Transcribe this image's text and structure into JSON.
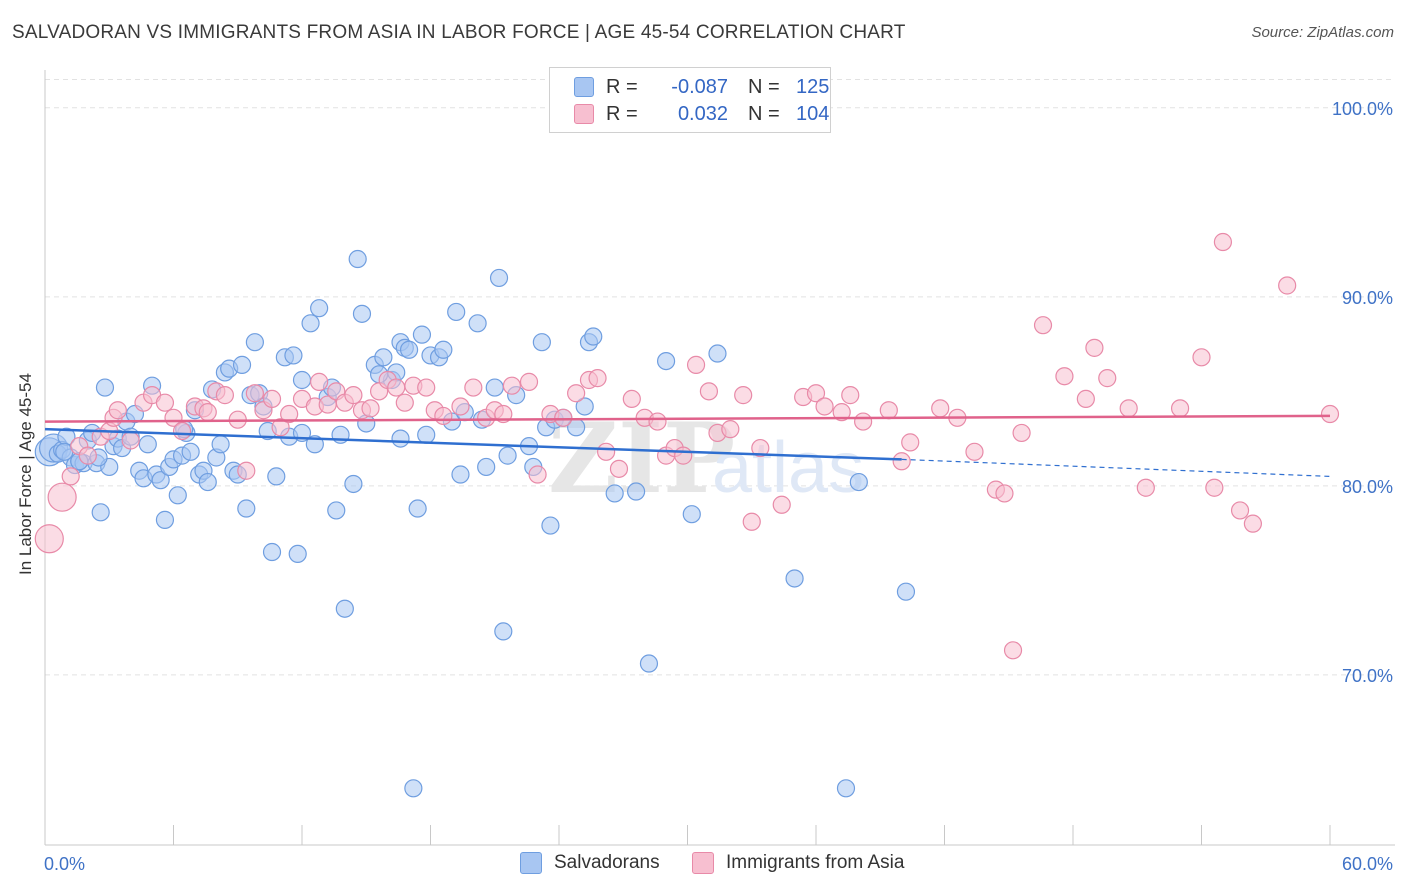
{
  "header": {
    "title": "SALVADORAN VS IMMIGRANTS FROM ASIA IN LABOR FORCE | AGE 45-54 CORRELATION CHART",
    "source": "Source: ZipAtlas.com"
  },
  "legend": {
    "rows": [
      {
        "r_label": "R =",
        "r_value": "-0.087",
        "n_label": "N =",
        "n_value": "125",
        "color": "#a8c6f2",
        "border": "#6f9ee0"
      },
      {
        "r_label": "R =",
        "r_value": "0.032",
        "n_label": "N =",
        "n_value": "104",
        "color": "#f7bfd0",
        "border": "#e88aa8"
      }
    ]
  },
  "bottom_legend": [
    "Salvadorans",
    "Immigrants from Asia"
  ],
  "watermark": {
    "zip": "ZIP",
    "atlas": "atlas"
  },
  "chart_data": {
    "type": "scatter",
    "title": "SALVADORAN VS IMMIGRANTS FROM ASIA IN LABOR FORCE | AGE 45-54 CORRELATION CHART",
    "xlabel": "",
    "ylabel": "In Labor Force | Age 45-54",
    "xlim": [
      0,
      60
    ],
    "ylim": [
      61,
      102
    ],
    "x_tick_labels": [
      "0.0%",
      "60.0%"
    ],
    "y_ticks": [
      70,
      80,
      90,
      100
    ],
    "y_tick_labels": [
      "70.0%",
      "80.0%",
      "90.0%",
      "100.0%"
    ],
    "grid": true,
    "legend_position": "top-center",
    "series": [
      {
        "name": "Salvadorans",
        "color": "#6f9ee0",
        "fill": "#a8c6f2",
        "trend": {
          "x": [
            0,
            40,
            60
          ],
          "y": [
            83.0,
            81.4,
            80.5
          ],
          "solid_until": 40
        },
        "points": [
          [
            0.2,
            81.8
          ],
          [
            0.4,
            82.0
          ],
          [
            0.6,
            81.7
          ],
          [
            0.8,
            81.9
          ],
          [
            1.0,
            82.6
          ],
          [
            1.2,
            81.5
          ],
          [
            1.4,
            81.1
          ],
          [
            1.6,
            81.3
          ],
          [
            1.8,
            81.2
          ],
          [
            2.0,
            82.4
          ],
          [
            2.2,
            82.8
          ],
          [
            2.4,
            81.2
          ],
          [
            2.6,
            78.6
          ],
          [
            2.8,
            85.2
          ],
          [
            3.0,
            81.0
          ],
          [
            3.2,
            82.1
          ],
          [
            3.4,
            82.5
          ],
          [
            3.6,
            82.0
          ],
          [
            3.8,
            83.4
          ],
          [
            4.0,
            82.6
          ],
          [
            4.2,
            83.8
          ],
          [
            4.4,
            80.8
          ],
          [
            4.6,
            80.4
          ],
          [
            4.8,
            82.2
          ],
          [
            5.0,
            85.3
          ],
          [
            5.2,
            80.6
          ],
          [
            5.4,
            80.3
          ],
          [
            5.6,
            78.2
          ],
          [
            5.8,
            81.0
          ],
          [
            6.0,
            81.4
          ],
          [
            6.2,
            79.5
          ],
          [
            6.4,
            81.6
          ],
          [
            6.6,
            82.8
          ],
          [
            6.8,
            81.8
          ],
          [
            7.0,
            84.0
          ],
          [
            7.2,
            80.6
          ],
          [
            7.4,
            80.8
          ],
          [
            7.6,
            80.2
          ],
          [
            7.8,
            85.1
          ],
          [
            8.0,
            81.5
          ],
          [
            8.2,
            82.2
          ],
          [
            8.4,
            86.0
          ],
          [
            8.6,
            86.2
          ],
          [
            8.8,
            80.8
          ],
          [
            9.0,
            80.6
          ],
          [
            9.2,
            86.4
          ],
          [
            9.4,
            78.8
          ],
          [
            9.6,
            84.8
          ],
          [
            9.8,
            87.6
          ],
          [
            10.0,
            84.9
          ],
          [
            10.2,
            84.2
          ],
          [
            10.4,
            82.9
          ],
          [
            10.6,
            76.5
          ],
          [
            10.8,
            80.5
          ],
          [
            11.2,
            86.8
          ],
          [
            11.4,
            82.6
          ],
          [
            11.6,
            86.9
          ],
          [
            11.8,
            76.4
          ],
          [
            12.0,
            85.6
          ],
          [
            12.4,
            88.6
          ],
          [
            12.6,
            82.2
          ],
          [
            12.8,
            89.4
          ],
          [
            13.2,
            84.7
          ],
          [
            13.4,
            85.2
          ],
          [
            13.6,
            78.7
          ],
          [
            13.8,
            82.7
          ],
          [
            14.0,
            73.5
          ],
          [
            14.4,
            80.1
          ],
          [
            14.6,
            92.0
          ],
          [
            14.8,
            89.1
          ],
          [
            15.0,
            83.3
          ],
          [
            15.4,
            86.4
          ],
          [
            15.8,
            86.8
          ],
          [
            16.2,
            85.6
          ],
          [
            16.4,
            86.0
          ],
          [
            16.6,
            87.6
          ],
          [
            16.8,
            87.3
          ],
          [
            17.0,
            87.2
          ],
          [
            17.2,
            64.0
          ],
          [
            17.4,
            78.8
          ],
          [
            17.6,
            88.0
          ],
          [
            17.8,
            82.7
          ],
          [
            18.0,
            86.9
          ],
          [
            18.4,
            86.8
          ],
          [
            18.6,
            87.2
          ],
          [
            19.0,
            83.4
          ],
          [
            19.2,
            89.2
          ],
          [
            19.4,
            80.6
          ],
          [
            19.6,
            83.9
          ],
          [
            20.2,
            88.6
          ],
          [
            20.6,
            81.0
          ],
          [
            21.0,
            85.2
          ],
          [
            21.2,
            91.0
          ],
          [
            21.4,
            72.3
          ],
          [
            21.6,
            81.6
          ],
          [
            22.6,
            82.1
          ],
          [
            22.8,
            81.0
          ],
          [
            23.2,
            87.6
          ],
          [
            23.4,
            83.1
          ],
          [
            23.6,
            77.9
          ],
          [
            23.8,
            83.5
          ],
          [
            24.2,
            83.6
          ],
          [
            24.8,
            83.1
          ],
          [
            25.2,
            84.2
          ],
          [
            25.4,
            87.6
          ],
          [
            25.6,
            87.9
          ],
          [
            26.6,
            79.6
          ],
          [
            27.6,
            79.7
          ],
          [
            28.2,
            70.6
          ],
          [
            29.0,
            86.6
          ],
          [
            30.2,
            78.5
          ],
          [
            31.4,
            87.0
          ],
          [
            35.0,
            75.1
          ],
          [
            37.4,
            64.0
          ],
          [
            38.0,
            80.2
          ],
          [
            40.2,
            74.4
          ],
          [
            1.6,
            81.3
          ],
          [
            0.9,
            81.8
          ],
          [
            2.5,
            81.5
          ],
          [
            6.5,
            83.0
          ],
          [
            12.0,
            82.8
          ],
          [
            15.6,
            85.9
          ],
          [
            20.4,
            83.5
          ],
          [
            22.0,
            84.8
          ],
          [
            16.6,
            82.5
          ]
        ]
      },
      {
        "name": "Immigrants from Asia",
        "color": "#e88aa8",
        "fill": "#f7bfd0",
        "trend": {
          "x": [
            0,
            60
          ],
          "y": [
            83.4,
            83.7
          ],
          "solid_until": 60
        },
        "points": [
          [
            0.2,
            77.2
          ],
          [
            0.8,
            79.4
          ],
          [
            1.2,
            80.5
          ],
          [
            1.6,
            82.1
          ],
          [
            2.0,
            81.6
          ],
          [
            2.6,
            82.6
          ],
          [
            3.0,
            82.9
          ],
          [
            3.2,
            83.6
          ],
          [
            3.4,
            84.0
          ],
          [
            4.0,
            82.4
          ],
          [
            4.6,
            84.4
          ],
          [
            5.0,
            84.8
          ],
          [
            5.6,
            84.4
          ],
          [
            6.0,
            83.6
          ],
          [
            6.4,
            82.9
          ],
          [
            7.0,
            84.2
          ],
          [
            7.4,
            84.1
          ],
          [
            7.6,
            83.9
          ],
          [
            8.0,
            85.0
          ],
          [
            8.4,
            84.8
          ],
          [
            9.0,
            83.5
          ],
          [
            9.4,
            80.8
          ],
          [
            9.8,
            84.9
          ],
          [
            10.2,
            84.0
          ],
          [
            10.6,
            84.6
          ],
          [
            11.0,
            83.1
          ],
          [
            11.4,
            83.8
          ],
          [
            12.0,
            84.6
          ],
          [
            12.6,
            84.2
          ],
          [
            12.8,
            85.5
          ],
          [
            13.2,
            84.3
          ],
          [
            13.6,
            85.0
          ],
          [
            14.0,
            84.4
          ],
          [
            14.4,
            84.8
          ],
          [
            14.8,
            84.0
          ],
          [
            15.2,
            84.1
          ],
          [
            15.6,
            85.0
          ],
          [
            16.0,
            85.6
          ],
          [
            16.4,
            85.2
          ],
          [
            16.8,
            84.4
          ],
          [
            17.2,
            85.3
          ],
          [
            17.8,
            85.2
          ],
          [
            18.2,
            84.0
          ],
          [
            18.6,
            83.7
          ],
          [
            19.4,
            84.2
          ],
          [
            20.0,
            85.2
          ],
          [
            20.6,
            83.6
          ],
          [
            21.0,
            84.0
          ],
          [
            21.4,
            83.8
          ],
          [
            21.8,
            85.3
          ],
          [
            22.6,
            85.5
          ],
          [
            23.0,
            80.6
          ],
          [
            23.6,
            83.8
          ],
          [
            24.2,
            83.6
          ],
          [
            24.8,
            84.9
          ],
          [
            25.4,
            85.6
          ],
          [
            25.8,
            85.7
          ],
          [
            26.2,
            81.8
          ],
          [
            26.8,
            80.9
          ],
          [
            27.4,
            84.6
          ],
          [
            28.0,
            83.6
          ],
          [
            28.6,
            83.4
          ],
          [
            29.0,
            81.6
          ],
          [
            29.4,
            82.0
          ],
          [
            29.8,
            81.6
          ],
          [
            30.4,
            86.4
          ],
          [
            31.0,
            85.0
          ],
          [
            31.4,
            82.8
          ],
          [
            32.0,
            83.0
          ],
          [
            32.6,
            84.8
          ],
          [
            33.0,
            78.1
          ],
          [
            33.4,
            82.0
          ],
          [
            34.4,
            79.0
          ],
          [
            35.4,
            84.7
          ],
          [
            36.0,
            84.9
          ],
          [
            36.4,
            84.2
          ],
          [
            37.2,
            83.9
          ],
          [
            37.6,
            84.8
          ],
          [
            38.2,
            83.4
          ],
          [
            39.4,
            84.0
          ],
          [
            40.0,
            81.3
          ],
          [
            40.4,
            82.3
          ],
          [
            41.8,
            84.1
          ],
          [
            42.6,
            83.6
          ],
          [
            43.4,
            81.8
          ],
          [
            44.4,
            79.8
          ],
          [
            44.8,
            79.6
          ],
          [
            45.2,
            71.3
          ],
          [
            45.6,
            82.8
          ],
          [
            46.6,
            88.5
          ],
          [
            47.6,
            85.8
          ],
          [
            48.6,
            84.6
          ],
          [
            49.0,
            87.3
          ],
          [
            49.6,
            85.7
          ],
          [
            50.6,
            84.1
          ],
          [
            51.4,
            79.9
          ],
          [
            53.0,
            84.1
          ],
          [
            54.0,
            86.8
          ],
          [
            54.6,
            79.9
          ],
          [
            55.0,
            92.9
          ],
          [
            55.8,
            78.7
          ],
          [
            56.4,
            78.0
          ],
          [
            58.0,
            90.6
          ],
          [
            60.0,
            83.8
          ]
        ]
      }
    ]
  }
}
